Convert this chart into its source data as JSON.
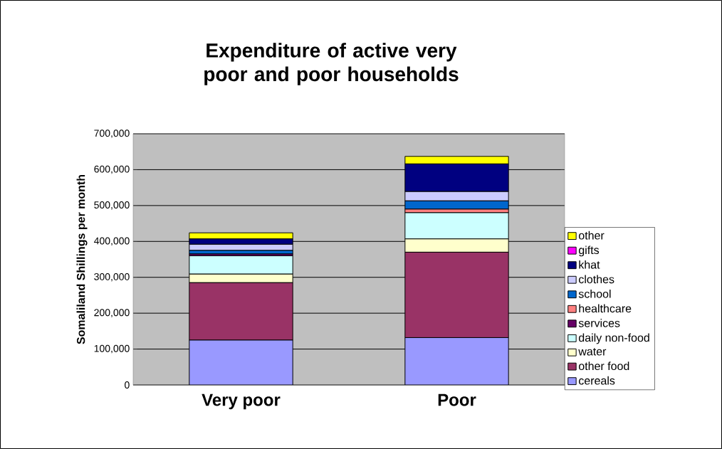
{
  "chart_data": {
    "type": "bar",
    "stacked": true,
    "title": "Expenditure of active very poor and poor households",
    "ylabel": "Somaliland Shillings per month",
    "categories": [
      "Very poor",
      "Poor"
    ],
    "series": [
      {
        "name": "cereals",
        "color": "#9999ff",
        "values": [
          125000,
          132000
        ]
      },
      {
        "name": "other food",
        "color": "#993366",
        "values": [
          160000,
          238000
        ]
      },
      {
        "name": "water",
        "color": "#ffffcc",
        "values": [
          24000,
          37000
        ]
      },
      {
        "name": "daily non-food",
        "color": "#ccffff",
        "values": [
          51000,
          73000
        ]
      },
      {
        "name": "services",
        "color": "#660066",
        "values": [
          5000,
          0
        ]
      },
      {
        "name": "healthcare",
        "color": "#ff8080",
        "values": [
          0,
          10000
        ]
      },
      {
        "name": "school",
        "color": "#0066cc",
        "values": [
          10000,
          23000
        ]
      },
      {
        "name": "clothes",
        "color": "#ccccff",
        "values": [
          17000,
          26000
        ]
      },
      {
        "name": "khat",
        "color": "#000080",
        "values": [
          15000,
          77000
        ]
      },
      {
        "name": "gifts",
        "color": "#ff00ff",
        "values": [
          0,
          0
        ]
      },
      {
        "name": "other",
        "color": "#ffff00",
        "values": [
          17000,
          21000
        ]
      }
    ],
    "ylim": [
      0,
      700000
    ],
    "yticks": [
      {
        "value": 0,
        "label": "0"
      },
      {
        "value": 100000,
        "label": "100,000"
      },
      {
        "value": 200000,
        "label": "200,000"
      },
      {
        "value": 300000,
        "label": "300,000"
      },
      {
        "value": 400000,
        "label": "400,000"
      },
      {
        "value": 500000,
        "label": "500,000"
      },
      {
        "value": 600000,
        "label": "600,000"
      },
      {
        "value": 700000,
        "label": "700,000"
      }
    ],
    "grid": "y",
    "legend": "right"
  }
}
